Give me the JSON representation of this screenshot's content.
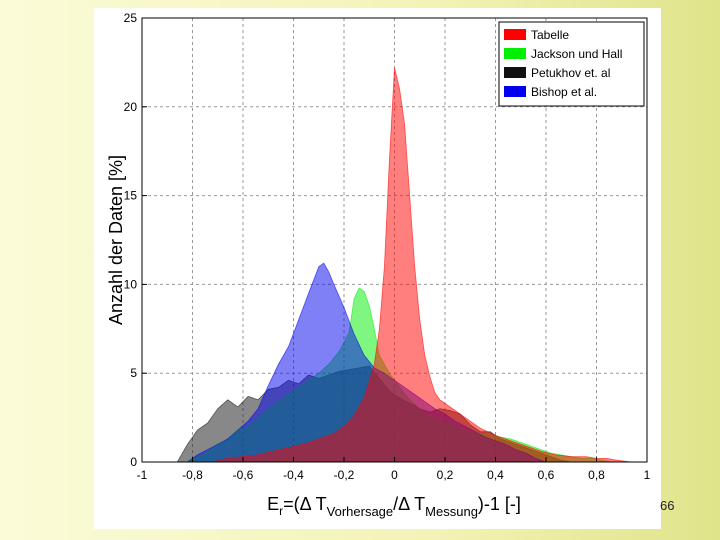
{
  "slide": {
    "page_number": "66"
  },
  "chart_data": {
    "type": "area",
    "ylabel": "Anzahl der Daten [%]",
    "xlabel": {
      "prefix": "E",
      "prefix_sub": "r",
      "part1": "=(Δ T",
      "sub1": "Vorhersage",
      "part2": "/Δ T",
      "sub2": "Messung",
      "part3": ")-1 [-]"
    },
    "xlim": [
      -1,
      1
    ],
    "ylim": [
      0,
      25
    ],
    "x_tick_labels": [
      "-1",
      "-0,8",
      "-0,6",
      "-0,4",
      "-0,2",
      "0",
      "0,2",
      "0,4",
      "0,6",
      "0,8",
      "1"
    ],
    "x_tick_values": [
      -1,
      -0.8,
      -0.6,
      -0.4,
      -0.2,
      0,
      0.2,
      0.4,
      0.6,
      0.8,
      1
    ],
    "y_tick_labels": [
      "0",
      "5",
      "10",
      "15",
      "20",
      "25"
    ],
    "y_tick_values": [
      0,
      5,
      10,
      15,
      20,
      25
    ],
    "grid": true,
    "legend_position": "top-right",
    "series": [
      {
        "name": "Petukhov et. al",
        "color": "#111111",
        "opacity": 0.5,
        "x": [
          -0.86,
          -0.82,
          -0.78,
          -0.74,
          -0.7,
          -0.66,
          -0.62,
          -0.58,
          -0.54,
          -0.5,
          -0.46,
          -0.42,
          -0.38,
          -0.34,
          -0.3,
          -0.26,
          -0.22,
          -0.18,
          -0.14,
          -0.1,
          -0.06,
          -0.02,
          0.02,
          0.06,
          0.1,
          0.14,
          0.18,
          0.22,
          0.26,
          0.3,
          0.34,
          0.38,
          0.42,
          0.46,
          0.5,
          0.54,
          0.58,
          0.62,
          0.66,
          0.7
        ],
        "y": [
          0,
          1,
          1.8,
          2.2,
          3,
          3.5,
          3.1,
          3.7,
          3.5,
          4.1,
          4.2,
          4.6,
          4.4,
          4.9,
          4.7,
          4.9,
          5.1,
          5.2,
          5.3,
          5.4,
          4.7,
          4,
          3.6,
          3.3,
          3,
          2.8,
          3,
          2.9,
          2.7,
          2.1,
          1.7,
          1.7,
          1.3,
          1.1,
          0.9,
          0.7,
          0.5,
          0.3,
          0.1,
          0
        ]
      },
      {
        "name": "Jackson und Hall",
        "color": "#00ee00",
        "opacity": 0.5,
        "x": [
          -0.82,
          -0.78,
          -0.74,
          -0.7,
          -0.66,
          -0.62,
          -0.58,
          -0.54,
          -0.5,
          -0.46,
          -0.42,
          -0.38,
          -0.34,
          -0.3,
          -0.26,
          -0.22,
          -0.18,
          -0.16,
          -0.14,
          -0.12,
          -0.1,
          -0.08,
          -0.06,
          -0.02,
          0.02,
          0.06,
          0.1,
          0.14,
          0.18,
          0.22,
          0.26,
          0.3,
          0.34,
          0.38,
          0.42,
          0.46,
          0.5,
          0.54,
          0.58,
          0.62,
          0.66,
          0.7,
          0.74,
          0.78,
          0.82,
          0.86
        ],
        "y": [
          0,
          0.3,
          0.6,
          1,
          1.3,
          1.8,
          2,
          2.5,
          3,
          3.4,
          3.8,
          4.2,
          4.6,
          5,
          5.5,
          6.2,
          7.3,
          9.2,
          9.8,
          9.6,
          8.8,
          7.5,
          6,
          5,
          4.2,
          3.5,
          3,
          2.6,
          2.4,
          2.2,
          1.9,
          1.7,
          1.6,
          1.5,
          1.4,
          1.3,
          1.1,
          0.9,
          0.7,
          0.5,
          0.4,
          0.3,
          0.2,
          0.2,
          0.1,
          0
        ]
      },
      {
        "name": "Bishop et al.",
        "color": "#0000ee",
        "opacity": 0.5,
        "x": [
          -0.82,
          -0.78,
          -0.74,
          -0.7,
          -0.66,
          -0.62,
          -0.58,
          -0.54,
          -0.5,
          -0.46,
          -0.42,
          -0.38,
          -0.34,
          -0.3,
          -0.28,
          -0.26,
          -0.24,
          -0.2,
          -0.16,
          -0.12,
          -0.08,
          -0.04,
          0,
          0.04,
          0.08,
          0.12,
          0.16,
          0.2,
          0.24,
          0.28,
          0.32,
          0.36,
          0.4,
          0.44,
          0.48,
          0.52,
          0.56,
          0.6
        ],
        "y": [
          0,
          0.4,
          0.7,
          1,
          1.3,
          1.8,
          2.3,
          3,
          4.3,
          5.5,
          6.5,
          8,
          9.5,
          11,
          11.2,
          10.7,
          10,
          8.7,
          7.2,
          6,
          5.3,
          5,
          4.6,
          4.2,
          3.8,
          3.4,
          3,
          2.7,
          2.3,
          2,
          1.7,
          1.4,
          1.2,
          1,
          0.7,
          0.5,
          0.2,
          0
        ]
      },
      {
        "name": "Tabelle",
        "color": "#ff0000",
        "opacity": 0.5,
        "x": [
          -0.72,
          -0.66,
          -0.6,
          -0.54,
          -0.48,
          -0.42,
          -0.36,
          -0.3,
          -0.24,
          -0.2,
          -0.16,
          -0.12,
          -0.08,
          -0.06,
          -0.04,
          -0.02,
          0,
          0.02,
          0.04,
          0.06,
          0.08,
          0.1,
          0.12,
          0.14,
          0.16,
          0.18,
          0.22,
          0.26,
          0.3,
          0.34,
          0.4,
          0.46,
          0.52,
          0.58,
          0.64,
          0.7,
          0.76,
          0.8,
          0.84,
          0.88,
          0.94
        ],
        "y": [
          0,
          0.2,
          0.3,
          0.4,
          0.6,
          0.8,
          1,
          1.3,
          1.6,
          2,
          2.6,
          3.6,
          5.5,
          7.5,
          11,
          17,
          22.2,
          21,
          19,
          15,
          11,
          8,
          6,
          4.8,
          3.9,
          3.5,
          3.1,
          2.7,
          2.3,
          1.9,
          1.5,
          1.2,
          0.9,
          0.6,
          0.4,
          0.3,
          0.3,
          0.2,
          0.2,
          0.1,
          0
        ]
      }
    ],
    "legend": [
      {
        "label": "Tabelle",
        "color": "#ff0000"
      },
      {
        "label": "Jackson und Hall",
        "color": "#00ee00"
      },
      {
        "label": "Petukhov et. al",
        "color": "#111111"
      },
      {
        "label": "Bishop et al.",
        "color": "#0000ee"
      }
    ]
  }
}
